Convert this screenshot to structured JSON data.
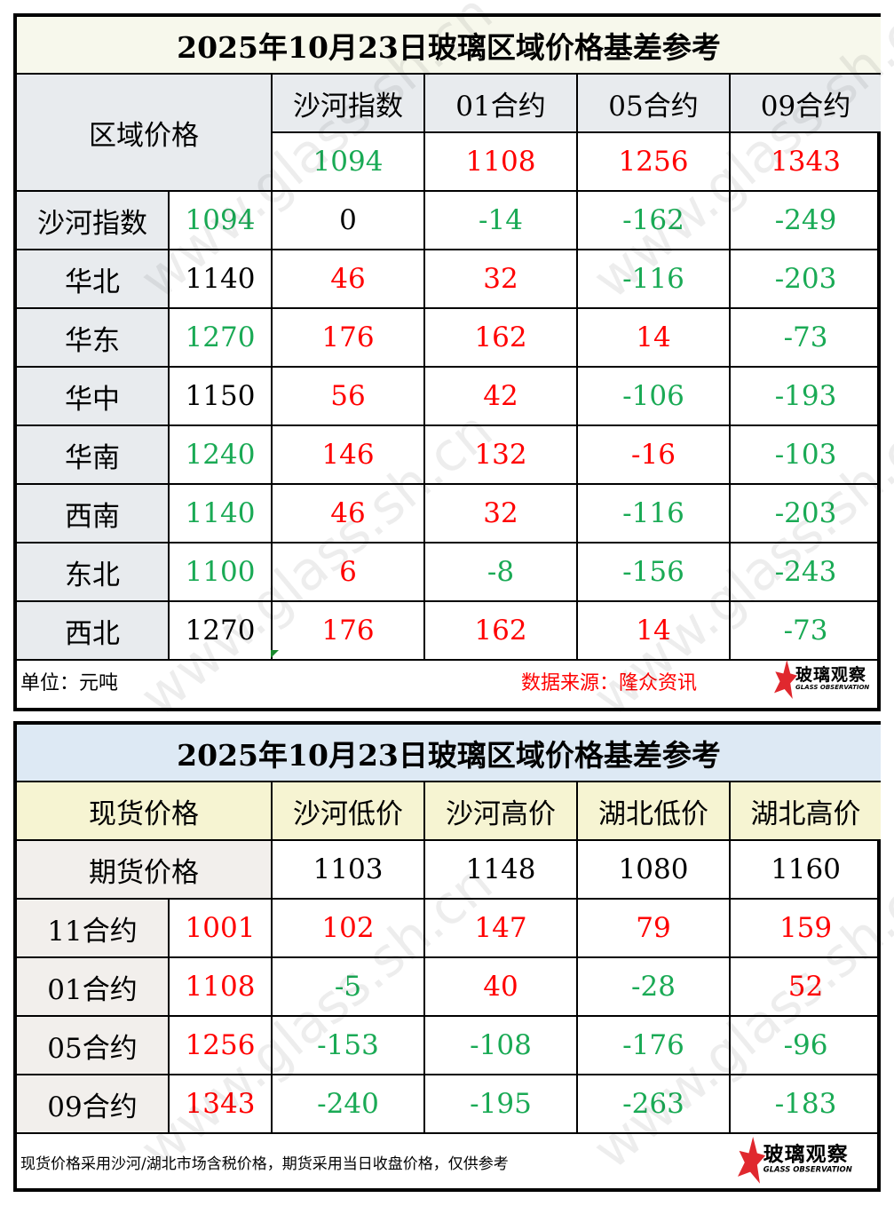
{
  "table1": {
    "title": "2025年10月23日玻璃区域价格基差参考",
    "corner_label": "区域价格",
    "columns": [
      "沙河指数",
      "01合约",
      "05合约",
      "09合约"
    ],
    "column_values": [
      {
        "value": "1094",
        "color": "green"
      },
      {
        "value": "1108",
        "color": "red"
      },
      {
        "value": "1256",
        "color": "red"
      },
      {
        "value": "1343",
        "color": "red"
      }
    ],
    "rows": [
      {
        "region": "沙河指数",
        "price": "1094",
        "price_color": "green",
        "cells": [
          [
            "0",
            "black"
          ],
          [
            "-14",
            "green"
          ],
          [
            "-162",
            "green"
          ],
          [
            "-249",
            "green"
          ]
        ]
      },
      {
        "region": "华北",
        "price": "1140",
        "price_color": "black",
        "cells": [
          [
            "46",
            "red"
          ],
          [
            "32",
            "red"
          ],
          [
            "-116",
            "green"
          ],
          [
            "-203",
            "green"
          ]
        ]
      },
      {
        "region": "华东",
        "price": "1270",
        "price_color": "green",
        "cells": [
          [
            "176",
            "red"
          ],
          [
            "162",
            "red"
          ],
          [
            "14",
            "red"
          ],
          [
            "-73",
            "green"
          ]
        ]
      },
      {
        "region": "华中",
        "price": "1150",
        "price_color": "black",
        "cells": [
          [
            "56",
            "red"
          ],
          [
            "42",
            "red"
          ],
          [
            "-106",
            "green"
          ],
          [
            "-193",
            "green"
          ]
        ]
      },
      {
        "region": "华南",
        "price": "1240",
        "price_color": "green",
        "cells": [
          [
            "146",
            "red"
          ],
          [
            "132",
            "red"
          ],
          [
            "-16",
            "red"
          ],
          [
            "-103",
            "green"
          ]
        ]
      },
      {
        "region": "西南",
        "price": "1140",
        "price_color": "green",
        "cells": [
          [
            "46",
            "red"
          ],
          [
            "32",
            "red"
          ],
          [
            "-116",
            "green"
          ],
          [
            "-203",
            "green"
          ]
        ]
      },
      {
        "region": "东北",
        "price": "1100",
        "price_color": "green",
        "cells": [
          [
            "6",
            "red"
          ],
          [
            "-8",
            "green"
          ],
          [
            "-156",
            "green"
          ],
          [
            "-243",
            "green"
          ]
        ]
      },
      {
        "region": "西北",
        "price": "1270",
        "price_color": "black",
        "cells": [
          [
            "176",
            "red"
          ],
          [
            "162",
            "red"
          ],
          [
            "14",
            "red"
          ],
          [
            "-73",
            "green"
          ]
        ]
      }
    ],
    "footer": {
      "unit": "单位：元吨",
      "source": "数据来源：隆众资讯"
    }
  },
  "table2": {
    "title": "2025年10月23日玻璃区域价格基差参考",
    "spot_label": "现货价格",
    "futures_label": "期货价格",
    "columns": [
      "沙河低价",
      "沙河高价",
      "湖北低价",
      "湖北高价"
    ],
    "column_values": [
      "1103",
      "1148",
      "1080",
      "1160"
    ],
    "rows": [
      {
        "contract": "11合约",
        "price": "1001",
        "cells": [
          [
            "102",
            "red"
          ],
          [
            "147",
            "red"
          ],
          [
            "79",
            "red"
          ],
          [
            "159",
            "red"
          ]
        ]
      },
      {
        "contract": "01合约",
        "price": "1108",
        "cells": [
          [
            "-5",
            "green"
          ],
          [
            "40",
            "red"
          ],
          [
            "-28",
            "green"
          ],
          [
            "52",
            "red"
          ]
        ]
      },
      {
        "contract": "05合约",
        "price": "1256",
        "cells": [
          [
            "-153",
            "green"
          ],
          [
            "-108",
            "green"
          ],
          [
            "-176",
            "green"
          ],
          [
            "-96",
            "green"
          ]
        ]
      },
      {
        "contract": "09合约",
        "price": "1343",
        "cells": [
          [
            "-240",
            "green"
          ],
          [
            "-195",
            "green"
          ],
          [
            "-263",
            "green"
          ],
          [
            "-183",
            "green"
          ]
        ]
      }
    ],
    "footer": {
      "note": "现货价格采用沙河/湖北市场含税价格，期货采用当日收盘价格，仅供参考"
    }
  },
  "logo": {
    "cn": "玻璃观察",
    "en": "GLASS OBSERVATION"
  },
  "watermark": "www.glass.sh.cn",
  "colors": {
    "red": "#ff0000",
    "green": "#1aaa55",
    "logo_red": "#e0282e"
  }
}
